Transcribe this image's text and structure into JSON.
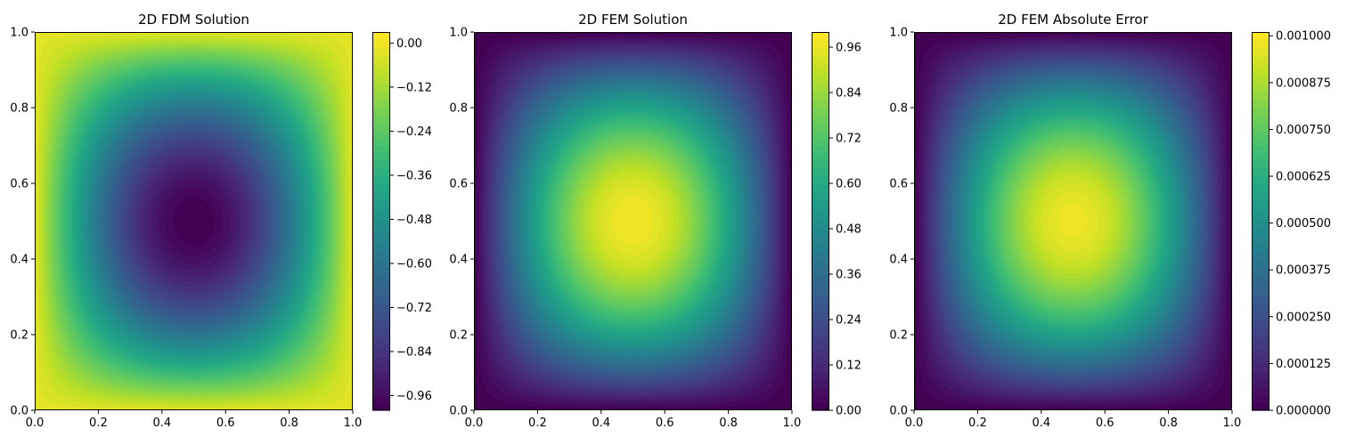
{
  "chart_data": [
    {
      "type": "heatmap",
      "title": "2D FDM Solution",
      "field": "-sin(pi*x)*sin(pi*y)",
      "xlim": [
        0,
        1
      ],
      "ylim": [
        0,
        1
      ],
      "x_ticks": [
        "0.0",
        "0.2",
        "0.4",
        "0.6",
        "0.8",
        "1.0"
      ],
      "y_ticks": [
        "0.0",
        "0.2",
        "0.4",
        "0.6",
        "0.8",
        "1.0"
      ],
      "colorbar": {
        "range": [
          -1.0,
          0.03
        ],
        "ticks": [
          0.0,
          -0.12,
          -0.24,
          -0.36,
          -0.48,
          -0.6,
          -0.72,
          -0.84,
          -0.96
        ],
        "tick_labels": [
          "0.00",
          "−0.12",
          "−0.24",
          "−0.36",
          "−0.48",
          "−0.60",
          "−0.72",
          "−0.84",
          "−0.96"
        ]
      },
      "colormap": "viridis",
      "levels": 50
    },
    {
      "type": "heatmap",
      "title": "2D FEM Solution",
      "field": "sin(pi*x)*sin(pi*y)",
      "xlim": [
        0,
        1
      ],
      "ylim": [
        0,
        1
      ],
      "x_ticks": [
        "0.0",
        "0.2",
        "0.4",
        "0.6",
        "0.8",
        "1.0"
      ],
      "y_ticks": [
        "0.0",
        "0.2",
        "0.4",
        "0.6",
        "0.8",
        "1.0"
      ],
      "colorbar": {
        "range": [
          0.0,
          1.0
        ],
        "ticks": [
          0.0,
          0.12,
          0.24,
          0.36,
          0.48,
          0.6,
          0.72,
          0.84,
          0.96
        ],
        "tick_labels": [
          "0.00",
          "0.12",
          "0.24",
          "0.36",
          "0.48",
          "0.60",
          "0.72",
          "0.84",
          "0.96"
        ]
      },
      "colormap": "viridis",
      "levels": 50
    },
    {
      "type": "heatmap",
      "title": "2D FEM Absolute Error",
      "field": "0.001*sin(pi*x)*sin(pi*y)",
      "xlim": [
        0,
        1
      ],
      "ylim": [
        0,
        1
      ],
      "x_ticks": [
        "0.0",
        "0.2",
        "0.4",
        "0.6",
        "0.8",
        "1.0"
      ],
      "y_ticks": [
        "0.0",
        "0.2",
        "0.4",
        "0.6",
        "0.8",
        "1.0"
      ],
      "colorbar": {
        "range": [
          0.0,
          0.00101
        ],
        "ticks": [
          0.0,
          0.000125,
          0.00025,
          0.000375,
          0.0005,
          0.000625,
          0.00075,
          0.000875,
          0.001
        ],
        "tick_labels": [
          "0.000000",
          "0.000125",
          "0.000250",
          "0.000375",
          "0.000500",
          "0.000625",
          "0.000750",
          "0.000875",
          "0.001000"
        ]
      },
      "colormap": "viridis",
      "levels": 50
    }
  ]
}
